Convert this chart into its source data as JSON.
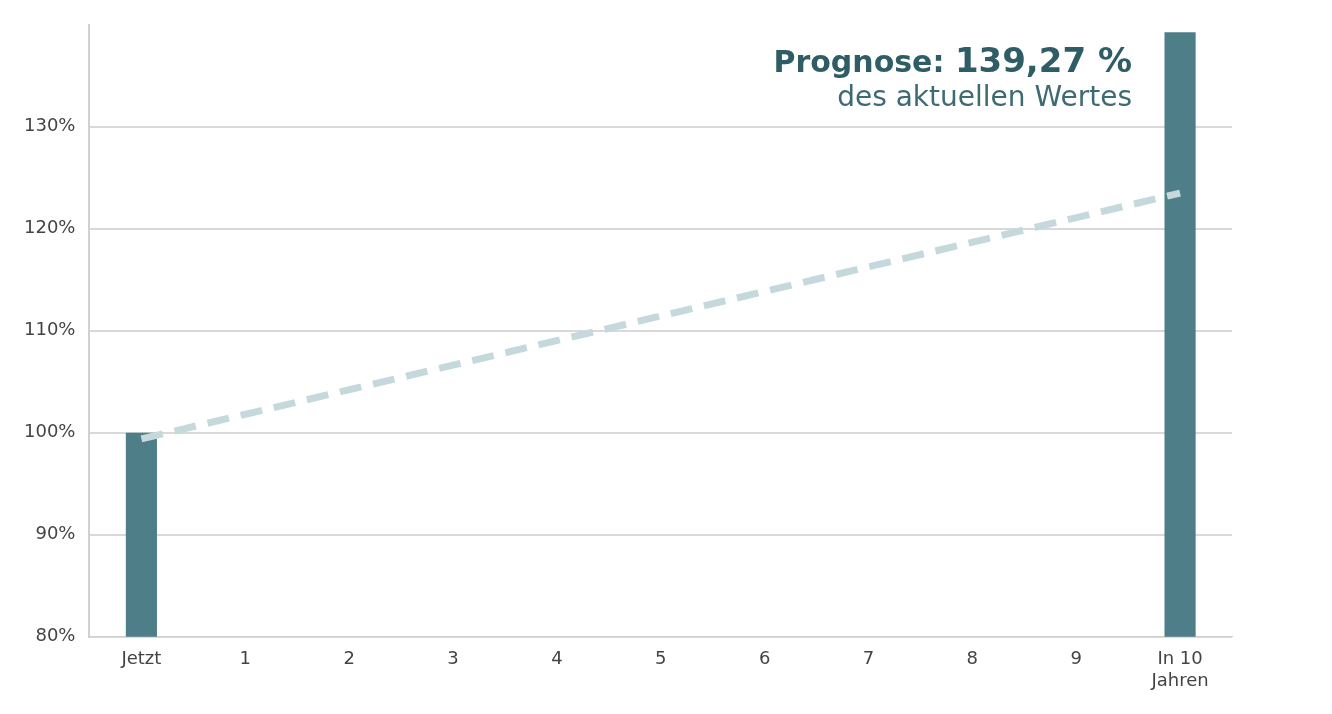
{
  "chart_data": {
    "type": "bar",
    "categories": [
      "Jetzt",
      "1",
      "2",
      "3",
      "4",
      "5",
      "6",
      "7",
      "8",
      "9",
      "In 10 Jahren"
    ],
    "series": [
      {
        "color": "#4e7f88",
        "values": [
          100,
          null,
          null,
          null,
          null,
          null,
          null,
          null,
          null,
          null,
          139.27
        ]
      },
      {
        "type": "line",
        "color": "#c5d9dc",
        "line_style": "dashed",
        "marker": "none",
        "values": [
          99.4,
          null,
          null,
          null,
          null,
          null,
          null,
          null,
          null,
          null,
          123.5
        ]
      }
    ],
    "ylim": [
      80,
      140
    ],
    "yticks": [
      {
        "value": 80,
        "label": "80%"
      },
      {
        "value": 90,
        "label": "90%"
      },
      {
        "value": 100,
        "label": "100%"
      },
      {
        "value": 110,
        "label": "110%"
      },
      {
        "value": 120,
        "label": "120%"
      },
      {
        "value": 130,
        "label": "130%"
      }
    ],
    "grid": "y",
    "legend": false,
    "annotations": [
      "Prognose: 139,27 %",
      "des aktuellen Wertes"
    ]
  }
}
